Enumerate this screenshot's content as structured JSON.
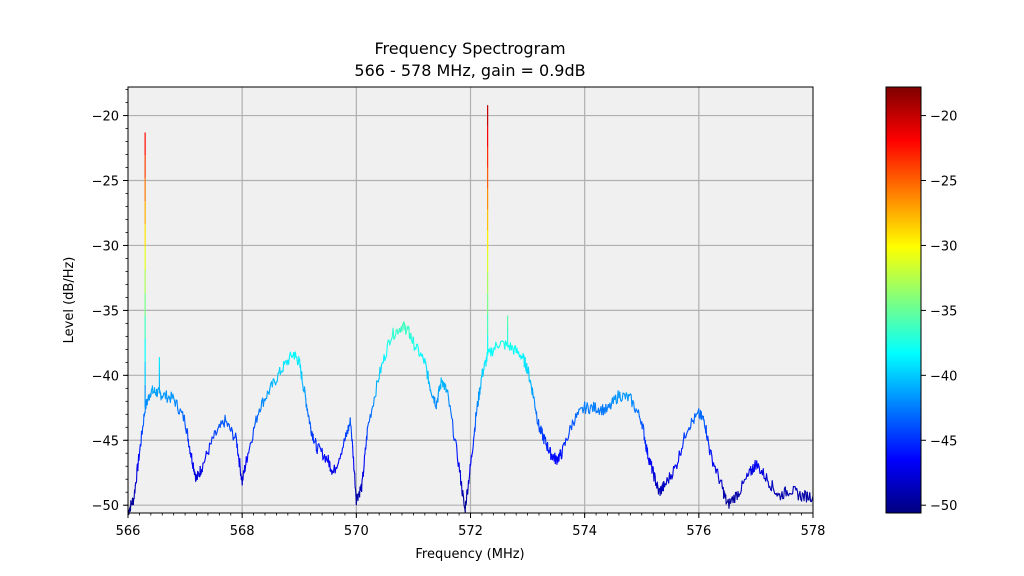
{
  "chart_data": {
    "type": "line",
    "title": "Frequency Spectrogram",
    "subtitle": "566 - 578 MHz, gain = 0.9dB",
    "xlabel": "Frequency (MHz)",
    "ylabel": "Level (dB/Hz)",
    "xlim": [
      566,
      578
    ],
    "ylim": [
      -50.6,
      -17.8
    ],
    "x_ticks": [
      566,
      568,
      570,
      572,
      574,
      576,
      578
    ],
    "x_tick_labels": [
      "566",
      "568",
      "570",
      "572",
      "574",
      "576",
      "578"
    ],
    "y_ticks": [
      -20,
      -25,
      -30,
      -35,
      -40,
      -45,
      -50
    ],
    "y_tick_labels": [
      "−20",
      "−25",
      "−30",
      "−35",
      "−40",
      "−45",
      "−50"
    ],
    "grid": true,
    "plot_background": "#f0f0f0",
    "colormap": "jet",
    "colorbar": {
      "range": [
        -50.6,
        -17.8
      ],
      "ticks": [
        -20,
        -25,
        -30,
        -35,
        -40,
        -45,
        -50
      ],
      "tick_labels": [
        "−20",
        "−25",
        "−30",
        "−35",
        "−40",
        "−45",
        "−50"
      ]
    },
    "series": [
      {
        "x": [
          566.0,
          566.1,
          566.2,
          566.3,
          566.4,
          566.5,
          566.6,
          566.8,
          567.0,
          567.1,
          567.2,
          567.3,
          567.5,
          567.7,
          567.9,
          568.0,
          568.1,
          568.3,
          568.5,
          568.7,
          568.9,
          569.0,
          569.1,
          569.2,
          569.3,
          569.5,
          569.6,
          569.8,
          569.9,
          570.0,
          570.1,
          570.2,
          570.4,
          570.6,
          570.8,
          570.9,
          571.0,
          571.2,
          571.3,
          571.4,
          571.5,
          571.6,
          571.8,
          571.9,
          572.0,
          572.1,
          572.2,
          572.3,
          572.5,
          572.7,
          572.9,
          573.0,
          573.1,
          573.2,
          573.3,
          573.4,
          573.5,
          573.6,
          573.8,
          574.0,
          574.2,
          574.4,
          574.6,
          574.8,
          575.0,
          575.1,
          575.2,
          575.3,
          575.4,
          575.6,
          575.8,
          576.0,
          576.1,
          576.2,
          576.4,
          576.5,
          576.7,
          576.9,
          577.0,
          577.2,
          577.4,
          577.6,
          577.8,
          578.0
        ],
        "y": [
          -50.5,
          -49.5,
          -46.0,
          -42.5,
          -41.2,
          -41.3,
          -41.5,
          -41.8,
          -43.5,
          -46.0,
          -48.0,
          -47.0,
          -44.8,
          -43.5,
          -45.0,
          -48.2,
          -46.0,
          -42.5,
          -41.0,
          -39.5,
          -38.3,
          -39.0,
          -41.5,
          -44.0,
          -45.5,
          -46.5,
          -47.5,
          -45.0,
          -43.5,
          -49.5,
          -48.5,
          -44.0,
          -40.0,
          -37.0,
          -36.2,
          -36.5,
          -37.5,
          -39.0,
          -41.0,
          -42.2,
          -40.3,
          -41.5,
          -47.0,
          -50.4,
          -47.0,
          -43.0,
          -40.0,
          -38.5,
          -37.5,
          -37.8,
          -38.5,
          -39.5,
          -41.5,
          -44.0,
          -45.0,
          -46.0,
          -46.5,
          -46.0,
          -43.5,
          -42.5,
          -42.5,
          -42.7,
          -41.5,
          -41.8,
          -43.5,
          -46.0,
          -47.5,
          -49.0,
          -48.5,
          -47.0,
          -44.0,
          -43.0,
          -43.5,
          -46.0,
          -48.5,
          -50.0,
          -49.0,
          -47.5,
          -46.8,
          -48.0,
          -49.3,
          -48.8,
          -49.3,
          -49.3
        ]
      }
    ],
    "spikes": [
      {
        "x": 566.3,
        "from": -42.5,
        "to": -21.3
      },
      {
        "x": 566.55,
        "from": -41.4,
        "to": -38.6
      },
      {
        "x": 572.3,
        "from": -38.5,
        "to": -19.2
      },
      {
        "x": 572.65,
        "from": -37.6,
        "to": -35.4
      }
    ]
  }
}
